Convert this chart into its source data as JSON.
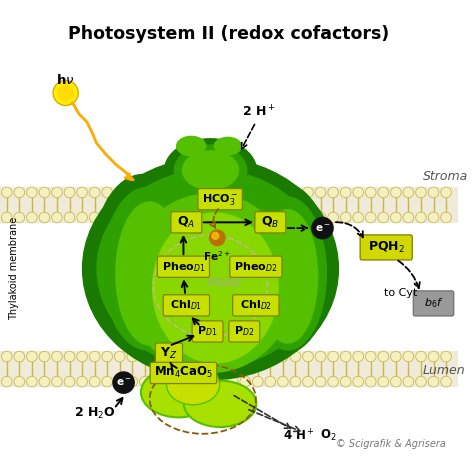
{
  "title": "Photosystem II (redox cofactors)",
  "bg_color": "#ffffff",
  "membrane_color": "#f0ead8",
  "lipid_color": "#f5f0c0",
  "lipid_outline": "#c8b850",
  "dark_green": "#1a7a00",
  "mid_green": "#2ea000",
  "light_green": "#55c000",
  "bright_green": "#88d800",
  "yellow_green": "#a8e000",
  "label_bg": "#c8e000",
  "label_bg2": "#d8f000",
  "pqh2_bg": "#d0d800",
  "cyt_bg": "#888888",
  "stroma_label": "Stroma",
  "lumen_label": "Lumen",
  "thylakoid_label": "Thylakoid membrane",
  "copyright": "© Scigrafik & Agrisera"
}
